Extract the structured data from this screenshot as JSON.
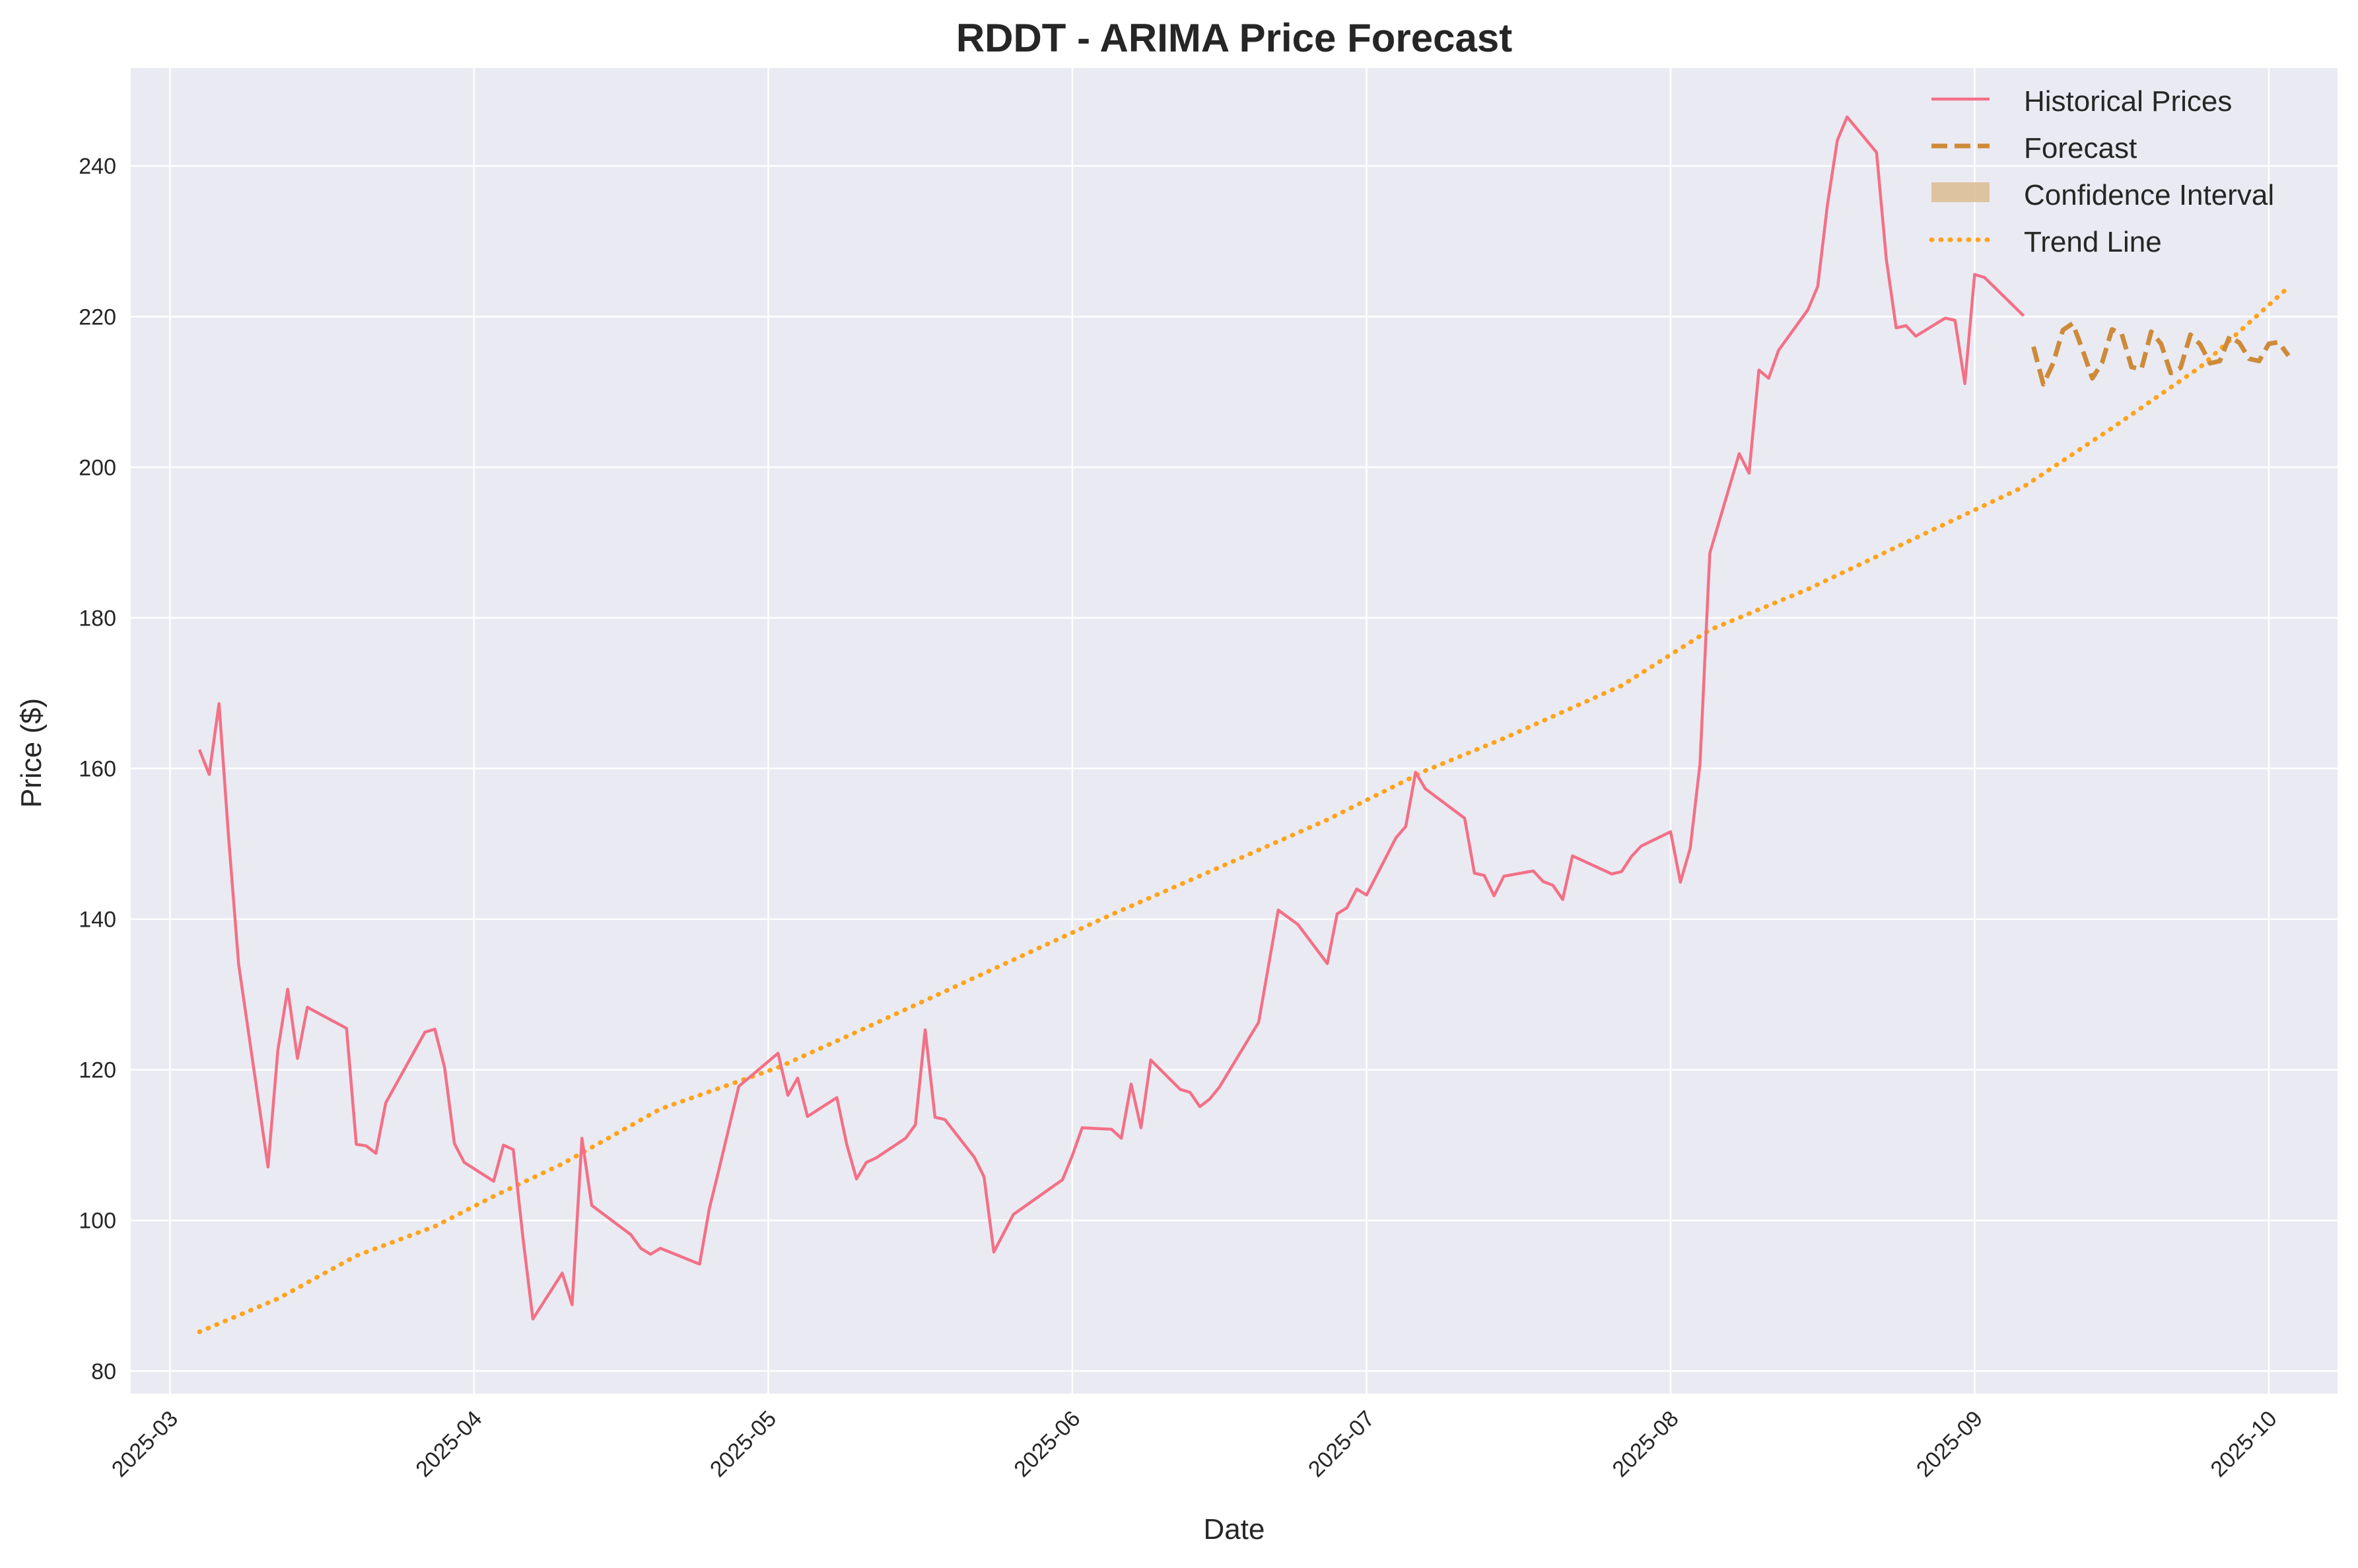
{
  "chart_data": {
    "type": "line",
    "title": "RDDT - ARIMA Price Forecast",
    "xlabel": "Date",
    "ylabel": "Price ($)",
    "grid": true,
    "legend_position": "top-right",
    "xlim": [
      "2025-02-25",
      "2025-10-08"
    ],
    "ylim": [
      77,
      253
    ],
    "x_ticks": [
      "2025-03",
      "2025-04",
      "2025-05",
      "2025-06",
      "2025-07",
      "2025-08",
      "2025-09",
      "2025-10"
    ],
    "x_tick_dates": [
      "2025-03-01",
      "2025-04-01",
      "2025-05-01",
      "2025-06-01",
      "2025-07-01",
      "2025-08-01",
      "2025-09-01",
      "2025-10-01"
    ],
    "y_ticks": [
      80,
      100,
      120,
      140,
      160,
      180,
      200,
      220,
      240
    ],
    "colors": {
      "background": "#eaeaf2",
      "grid": "#ffffff",
      "historical": "#f37086",
      "forecast": "#cd8b39",
      "confidence": "#d9b98a",
      "trend": "#ffa41c"
    },
    "legend": [
      {
        "label": "Historical Prices",
        "style": "solid",
        "color_key": "historical"
      },
      {
        "label": "Forecast",
        "style": "dashed",
        "color_key": "forecast"
      },
      {
        "label": "Confidence Interval",
        "style": "patch",
        "color_key": "confidence"
      },
      {
        "label": "Trend Line",
        "style": "dotted",
        "color_key": "trend"
      }
    ],
    "series": [
      {
        "name": "Historical Prices",
        "style": "solid",
        "color_key": "historical",
        "points": [
          [
            "2025-03-04",
            162.5
          ],
          [
            "2025-03-05",
            159.2
          ],
          [
            "2025-03-06",
            168.6
          ],
          [
            "2025-03-07",
            150.5
          ],
          [
            "2025-03-08",
            134.0
          ],
          [
            "2025-03-11",
            107.1
          ],
          [
            "2025-03-12",
            122.6
          ],
          [
            "2025-03-13",
            130.7
          ],
          [
            "2025-03-14",
            121.5
          ],
          [
            "2025-03-15",
            128.3
          ],
          [
            "2025-03-19",
            125.5
          ],
          [
            "2025-03-20",
            110.1
          ],
          [
            "2025-03-21",
            109.9
          ],
          [
            "2025-03-22",
            108.9
          ],
          [
            "2025-03-23",
            115.6
          ],
          [
            "2025-03-27",
            125.0
          ],
          [
            "2025-03-28",
            125.4
          ],
          [
            "2025-03-29",
            120.3
          ],
          [
            "2025-03-30",
            110.2
          ],
          [
            "2025-03-31",
            107.7
          ],
          [
            "2025-04-03",
            105.2
          ],
          [
            "2025-04-04",
            110.0
          ],
          [
            "2025-04-05",
            109.4
          ],
          [
            "2025-04-06",
            97.6
          ],
          [
            "2025-04-07",
            86.9
          ],
          [
            "2025-04-10",
            93.0
          ],
          [
            "2025-04-11",
            88.8
          ],
          [
            "2025-04-12",
            110.9
          ],
          [
            "2025-04-13",
            102.0
          ],
          [
            "2025-04-17",
            98.1
          ],
          [
            "2025-04-18",
            96.3
          ],
          [
            "2025-04-19",
            95.5
          ],
          [
            "2025-04-20",
            96.3
          ],
          [
            "2025-04-24",
            94.2
          ],
          [
            "2025-04-25",
            101.6
          ],
          [
            "2025-04-26",
            106.9
          ],
          [
            "2025-04-28",
            117.8
          ],
          [
            "2025-05-02",
            122.2
          ],
          [
            "2025-05-03",
            116.6
          ],
          [
            "2025-05-04",
            118.9
          ],
          [
            "2025-05-05",
            113.8
          ],
          [
            "2025-05-08",
            116.3
          ],
          [
            "2025-05-09",
            110.1
          ],
          [
            "2025-05-10",
            105.5
          ],
          [
            "2025-05-11",
            107.7
          ],
          [
            "2025-05-12",
            108.3
          ],
          [
            "2025-05-15",
            110.9
          ],
          [
            "2025-05-16",
            112.7
          ],
          [
            "2025-05-17",
            125.3
          ],
          [
            "2025-05-18",
            113.7
          ],
          [
            "2025-05-19",
            113.4
          ],
          [
            "2025-05-22",
            108.4
          ],
          [
            "2025-05-23",
            105.8
          ],
          [
            "2025-05-24",
            95.8
          ],
          [
            "2025-05-26",
            100.8
          ],
          [
            "2025-05-31",
            105.4
          ],
          [
            "2025-06-01",
            108.6
          ],
          [
            "2025-06-02",
            112.3
          ],
          [
            "2025-06-05",
            112.1
          ],
          [
            "2025-06-06",
            110.9
          ],
          [
            "2025-06-07",
            118.1
          ],
          [
            "2025-06-08",
            112.3
          ],
          [
            "2025-06-09",
            121.3
          ],
          [
            "2025-06-12",
            117.4
          ],
          [
            "2025-06-13",
            117.0
          ],
          [
            "2025-06-14",
            115.1
          ],
          [
            "2025-06-15",
            116.1
          ],
          [
            "2025-06-16",
            117.7
          ],
          [
            "2025-06-20",
            126.3
          ],
          [
            "2025-06-22",
            141.2
          ],
          [
            "2025-06-24",
            139.3
          ],
          [
            "2025-06-27",
            134.1
          ],
          [
            "2025-06-28",
            140.7
          ],
          [
            "2025-06-29",
            141.5
          ],
          [
            "2025-06-30",
            144.0
          ],
          [
            "2025-07-01",
            143.2
          ],
          [
            "2025-07-04",
            150.8
          ],
          [
            "2025-07-05",
            152.3
          ],
          [
            "2025-07-06",
            159.5
          ],
          [
            "2025-07-07",
            157.3
          ],
          [
            "2025-07-11",
            153.4
          ],
          [
            "2025-07-12",
            146.1
          ],
          [
            "2025-07-13",
            145.8
          ],
          [
            "2025-07-14",
            143.1
          ],
          [
            "2025-07-15",
            145.7
          ],
          [
            "2025-07-18",
            146.4
          ],
          [
            "2025-07-19",
            145.0
          ],
          [
            "2025-07-20",
            144.5
          ],
          [
            "2025-07-21",
            142.6
          ],
          [
            "2025-07-22",
            148.4
          ],
          [
            "2025-07-26",
            146.0
          ],
          [
            "2025-07-27",
            146.3
          ],
          [
            "2025-07-28",
            148.3
          ],
          [
            "2025-07-29",
            149.7
          ],
          [
            "2025-08-01",
            151.6
          ],
          [
            "2025-08-02",
            144.9
          ],
          [
            "2025-08-03",
            149.4
          ],
          [
            "2025-08-04",
            160.6
          ],
          [
            "2025-08-05",
            188.6
          ],
          [
            "2025-08-08",
            201.8
          ],
          [
            "2025-08-09",
            199.2
          ],
          [
            "2025-08-10",
            212.9
          ],
          [
            "2025-08-11",
            211.8
          ],
          [
            "2025-08-12",
            215.5
          ],
          [
            "2025-08-15",
            220.9
          ],
          [
            "2025-08-16",
            224.0
          ],
          [
            "2025-08-17",
            234.9
          ],
          [
            "2025-08-18",
            243.4
          ],
          [
            "2025-08-19",
            246.5
          ],
          [
            "2025-08-22",
            241.8
          ],
          [
            "2025-08-23",
            227.6
          ],
          [
            "2025-08-24",
            218.5
          ],
          [
            "2025-08-25",
            218.8
          ],
          [
            "2025-08-26",
            217.4
          ],
          [
            "2025-08-29",
            219.8
          ],
          [
            "2025-08-30",
            219.5
          ],
          [
            "2025-08-31",
            211.1
          ],
          [
            "2025-09-01",
            225.6
          ],
          [
            "2025-09-02",
            225.2
          ],
          [
            "2025-09-06",
            220.1
          ]
        ]
      },
      {
        "name": "Forecast",
        "style": "dashed",
        "color_key": "forecast",
        "points": [
          [
            "2025-09-07",
            216.0
          ],
          [
            "2025-09-08",
            211.0
          ],
          [
            "2025-09-09",
            213.8
          ],
          [
            "2025-09-10",
            218.2
          ],
          [
            "2025-09-11",
            219.1
          ],
          [
            "2025-09-12",
            215.6
          ],
          [
            "2025-09-13",
            211.8
          ],
          [
            "2025-09-14",
            213.9
          ],
          [
            "2025-09-15",
            218.3
          ],
          [
            "2025-09-16",
            217.7
          ],
          [
            "2025-09-17",
            213.3
          ],
          [
            "2025-09-18",
            213.0
          ],
          [
            "2025-09-19",
            218.0
          ],
          [
            "2025-09-20",
            216.4
          ],
          [
            "2025-09-21",
            212.5
          ],
          [
            "2025-09-22",
            213.2
          ],
          [
            "2025-09-23",
            217.6
          ],
          [
            "2025-09-24",
            216.3
          ],
          [
            "2025-09-25",
            213.8
          ],
          [
            "2025-09-26",
            214.1
          ],
          [
            "2025-09-27",
            217.4
          ],
          [
            "2025-09-28",
            216.5
          ],
          [
            "2025-09-29",
            214.4
          ],
          [
            "2025-09-30",
            214.1
          ],
          [
            "2025-10-01",
            216.4
          ],
          [
            "2025-10-02",
            216.6
          ],
          [
            "2025-10-03",
            214.8
          ]
        ]
      },
      {
        "name": "Trend Line",
        "style": "dotted",
        "color_key": "trend",
        "points": [
          [
            "2025-03-04",
            85.2
          ],
          [
            "2025-03-12",
            89.6
          ],
          [
            "2025-03-20",
            95.3
          ],
          [
            "2025-03-28",
            99.2
          ],
          [
            "2025-04-03",
            103.2
          ],
          [
            "2025-04-10",
            107.5
          ],
          [
            "2025-04-20",
            114.8
          ],
          [
            "2025-05-02",
            120.3
          ],
          [
            "2025-05-10",
            125.0
          ],
          [
            "2025-05-24",
            133.4
          ],
          [
            "2025-06-05",
            140.6
          ],
          [
            "2025-06-15",
            146.3
          ],
          [
            "2025-06-27",
            153.2
          ],
          [
            "2025-07-07",
            159.7
          ],
          [
            "2025-07-15",
            164.0
          ],
          [
            "2025-07-27",
            171.0
          ],
          [
            "2025-08-05",
            178.4
          ],
          [
            "2025-08-15",
            183.8
          ],
          [
            "2025-08-25",
            190.0
          ],
          [
            "2025-09-06",
            197.4
          ],
          [
            "2025-09-15",
            205.2
          ],
          [
            "2025-09-24",
            213.3
          ],
          [
            "2025-10-03",
            223.9
          ]
        ]
      }
    ]
  }
}
